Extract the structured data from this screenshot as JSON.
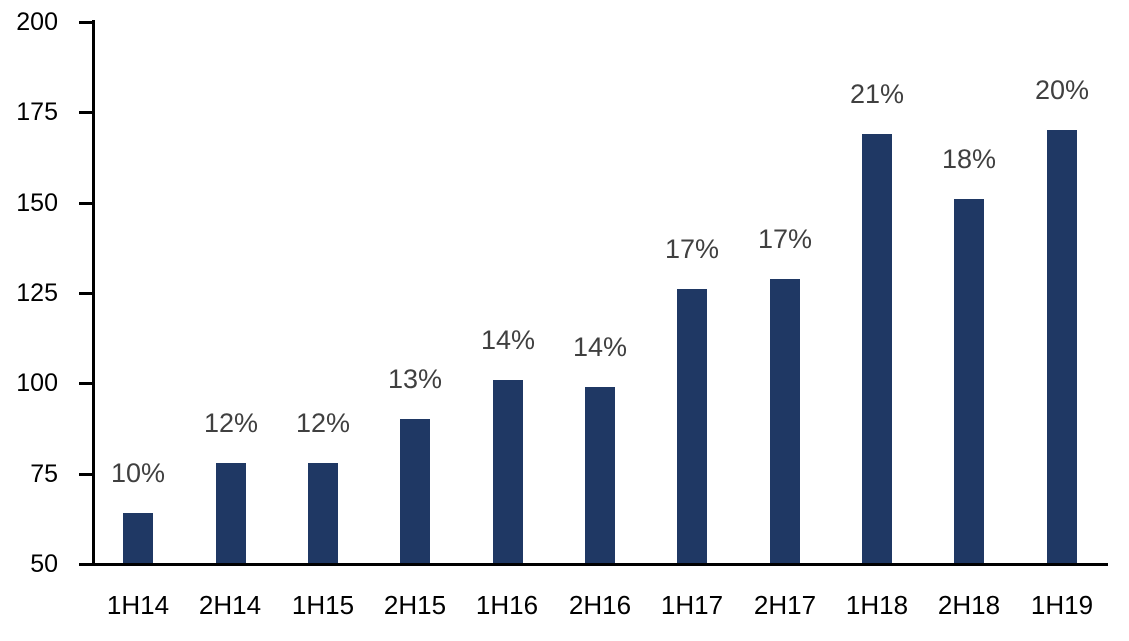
{
  "chart_data": {
    "type": "bar",
    "title": "",
    "categories": [
      "1H14",
      "2H14",
      "1H15",
      "2H15",
      "1H16",
      "2H16",
      "1H17",
      "2H17",
      "1H18",
      "2H18",
      "1H19"
    ],
    "values": [
      64,
      78,
      78,
      90,
      101,
      99,
      126,
      129,
      169,
      151,
      170
    ],
    "bar_labels": [
      "10%",
      "12%",
      "12%",
      "13%",
      "14%",
      "14%",
      "17%",
      "17%",
      "21%",
      "18%",
      "20%"
    ],
    "xlabel": "",
    "ylabel": "",
    "ylim": [
      50,
      200
    ],
    "yticks": [
      50,
      75,
      100,
      125,
      150,
      175,
      200
    ],
    "grid": false,
    "legend_position": "none",
    "colors": {
      "bar": "#1F3864",
      "bar_label": "#404040",
      "axis": "#000000",
      "tick_label": "#000000",
      "background": "#FFFFFF"
    }
  }
}
